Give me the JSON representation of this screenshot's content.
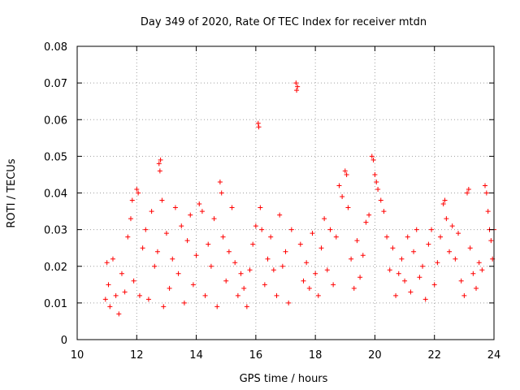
{
  "chart_data": {
    "type": "scatter",
    "title": "Day 349 of 2020, Rate Of TEC Index for receiver mtdn",
    "xlabel": "GPS time / hours",
    "ylabel": "ROTI / TECUs",
    "xlim": [
      10,
      24
    ],
    "ylim": [
      0,
      0.08
    ],
    "x_ticks": [
      10,
      12,
      14,
      16,
      18,
      20,
      22,
      24
    ],
    "x_tick_labels": [
      "10",
      "12",
      "14",
      "16",
      "18",
      "20",
      "22",
      "24"
    ],
    "y_ticks": [
      0,
      0.01,
      0.02,
      0.03,
      0.04,
      0.05,
      0.06,
      0.07,
      0.08
    ],
    "y_tick_labels": [
      "0",
      "0.01",
      "0.02",
      "0.03",
      "0.04",
      "0.05",
      "0.06",
      "0.07",
      "0.08"
    ],
    "grid": true,
    "grid_style": "dotted",
    "marker": "+",
    "series_color": "#ff0000",
    "series": [
      {
        "values_described": "dense band of ROTI values, mostly 0.005–0.02 TECU/s, from about 10.9 to 24 h",
        "points": [
          [
            10.95,
            0.011
          ],
          [
            11.0,
            0.021
          ],
          [
            11.05,
            0.015
          ],
          [
            11.1,
            0.009
          ],
          [
            11.2,
            0.022
          ],
          [
            11.3,
            0.012
          ],
          [
            11.4,
            0.007
          ],
          [
            11.5,
            0.018
          ],
          [
            11.6,
            0.013
          ],
          [
            11.7,
            0.028
          ],
          [
            11.8,
            0.033
          ],
          [
            11.85,
            0.038
          ],
          [
            11.9,
            0.016
          ],
          [
            12.0,
            0.041
          ],
          [
            12.05,
            0.04
          ],
          [
            12.1,
            0.012
          ],
          [
            12.2,
            0.025
          ],
          [
            12.3,
            0.03
          ],
          [
            12.4,
            0.011
          ],
          [
            12.5,
            0.035
          ],
          [
            12.6,
            0.02
          ],
          [
            12.7,
            0.024
          ],
          [
            12.75,
            0.048
          ],
          [
            12.78,
            0.046
          ],
          [
            12.8,
            0.049
          ],
          [
            12.85,
            0.038
          ],
          [
            12.9,
            0.009
          ],
          [
            13.0,
            0.029
          ],
          [
            13.1,
            0.014
          ],
          [
            13.2,
            0.022
          ],
          [
            13.3,
            0.036
          ],
          [
            13.4,
            0.018
          ],
          [
            13.5,
            0.031
          ],
          [
            13.6,
            0.01
          ],
          [
            13.7,
            0.027
          ],
          [
            13.8,
            0.034
          ],
          [
            13.9,
            0.015
          ],
          [
            14.0,
            0.023
          ],
          [
            14.1,
            0.037
          ],
          [
            14.2,
            0.035
          ],
          [
            14.3,
            0.012
          ],
          [
            14.4,
            0.026
          ],
          [
            14.5,
            0.02
          ],
          [
            14.6,
            0.033
          ],
          [
            14.7,
            0.009
          ],
          [
            14.8,
            0.043
          ],
          [
            14.85,
            0.04
          ],
          [
            14.9,
            0.028
          ],
          [
            15.0,
            0.016
          ],
          [
            15.1,
            0.024
          ],
          [
            15.2,
            0.036
          ],
          [
            15.3,
            0.021
          ],
          [
            15.4,
            0.012
          ],
          [
            15.5,
            0.018
          ],
          [
            15.6,
            0.014
          ],
          [
            15.7,
            0.009
          ],
          [
            15.8,
            0.019
          ],
          [
            15.9,
            0.026
          ],
          [
            16.0,
            0.031
          ],
          [
            16.08,
            0.059
          ],
          [
            16.1,
            0.058
          ],
          [
            16.15,
            0.036
          ],
          [
            16.2,
            0.03
          ],
          [
            16.3,
            0.015
          ],
          [
            16.4,
            0.022
          ],
          [
            16.5,
            0.028
          ],
          [
            16.6,
            0.019
          ],
          [
            16.7,
            0.012
          ],
          [
            16.8,
            0.034
          ],
          [
            16.9,
            0.02
          ],
          [
            17.0,
            0.024
          ],
          [
            17.1,
            0.01
          ],
          [
            17.2,
            0.03
          ],
          [
            17.35,
            0.07
          ],
          [
            17.37,
            0.068
          ],
          [
            17.4,
            0.069
          ],
          [
            17.5,
            0.026
          ],
          [
            17.6,
            0.016
          ],
          [
            17.7,
            0.021
          ],
          [
            17.8,
            0.014
          ],
          [
            17.9,
            0.029
          ],
          [
            18.0,
            0.018
          ],
          [
            18.1,
            0.012
          ],
          [
            18.2,
            0.025
          ],
          [
            18.3,
            0.033
          ],
          [
            18.4,
            0.019
          ],
          [
            18.5,
            0.03
          ],
          [
            18.6,
            0.015
          ],
          [
            18.7,
            0.028
          ],
          [
            18.8,
            0.042
          ],
          [
            18.9,
            0.039
          ],
          [
            19.0,
            0.046
          ],
          [
            19.05,
            0.045
          ],
          [
            19.1,
            0.036
          ],
          [
            19.2,
            0.022
          ],
          [
            19.3,
            0.014
          ],
          [
            19.4,
            0.027
          ],
          [
            19.5,
            0.017
          ],
          [
            19.6,
            0.023
          ],
          [
            19.7,
            0.032
          ],
          [
            19.8,
            0.034
          ],
          [
            19.9,
            0.05
          ],
          [
            19.95,
            0.049
          ],
          [
            20.0,
            0.045
          ],
          [
            20.05,
            0.043
          ],
          [
            20.1,
            0.041
          ],
          [
            20.2,
            0.038
          ],
          [
            20.3,
            0.035
          ],
          [
            20.4,
            0.028
          ],
          [
            20.5,
            0.019
          ],
          [
            20.6,
            0.025
          ],
          [
            20.7,
            0.012
          ],
          [
            20.8,
            0.018
          ],
          [
            20.9,
            0.022
          ],
          [
            21.0,
            0.016
          ],
          [
            21.1,
            0.028
          ],
          [
            21.2,
            0.013
          ],
          [
            21.3,
            0.024
          ],
          [
            21.4,
            0.03
          ],
          [
            21.5,
            0.017
          ],
          [
            21.6,
            0.02
          ],
          [
            21.7,
            0.011
          ],
          [
            21.8,
            0.026
          ],
          [
            21.9,
            0.03
          ],
          [
            22.0,
            0.015
          ],
          [
            22.1,
            0.021
          ],
          [
            22.2,
            0.028
          ],
          [
            22.3,
            0.037
          ],
          [
            22.35,
            0.038
          ],
          [
            22.4,
            0.033
          ],
          [
            22.5,
            0.024
          ],
          [
            22.6,
            0.031
          ],
          [
            22.7,
            0.022
          ],
          [
            22.8,
            0.029
          ],
          [
            22.9,
            0.016
          ],
          [
            23.0,
            0.012
          ],
          [
            23.1,
            0.04
          ],
          [
            23.15,
            0.041
          ],
          [
            23.2,
            0.025
          ],
          [
            23.3,
            0.018
          ],
          [
            23.4,
            0.014
          ],
          [
            23.5,
            0.021
          ],
          [
            23.6,
            0.019
          ],
          [
            23.7,
            0.042
          ],
          [
            23.75,
            0.04
          ],
          [
            23.8,
            0.035
          ],
          [
            23.85,
            0.03
          ],
          [
            23.9,
            0.027
          ],
          [
            23.95,
            0.022
          ],
          [
            24.0,
            0.03
          ]
        ]
      }
    ]
  }
}
